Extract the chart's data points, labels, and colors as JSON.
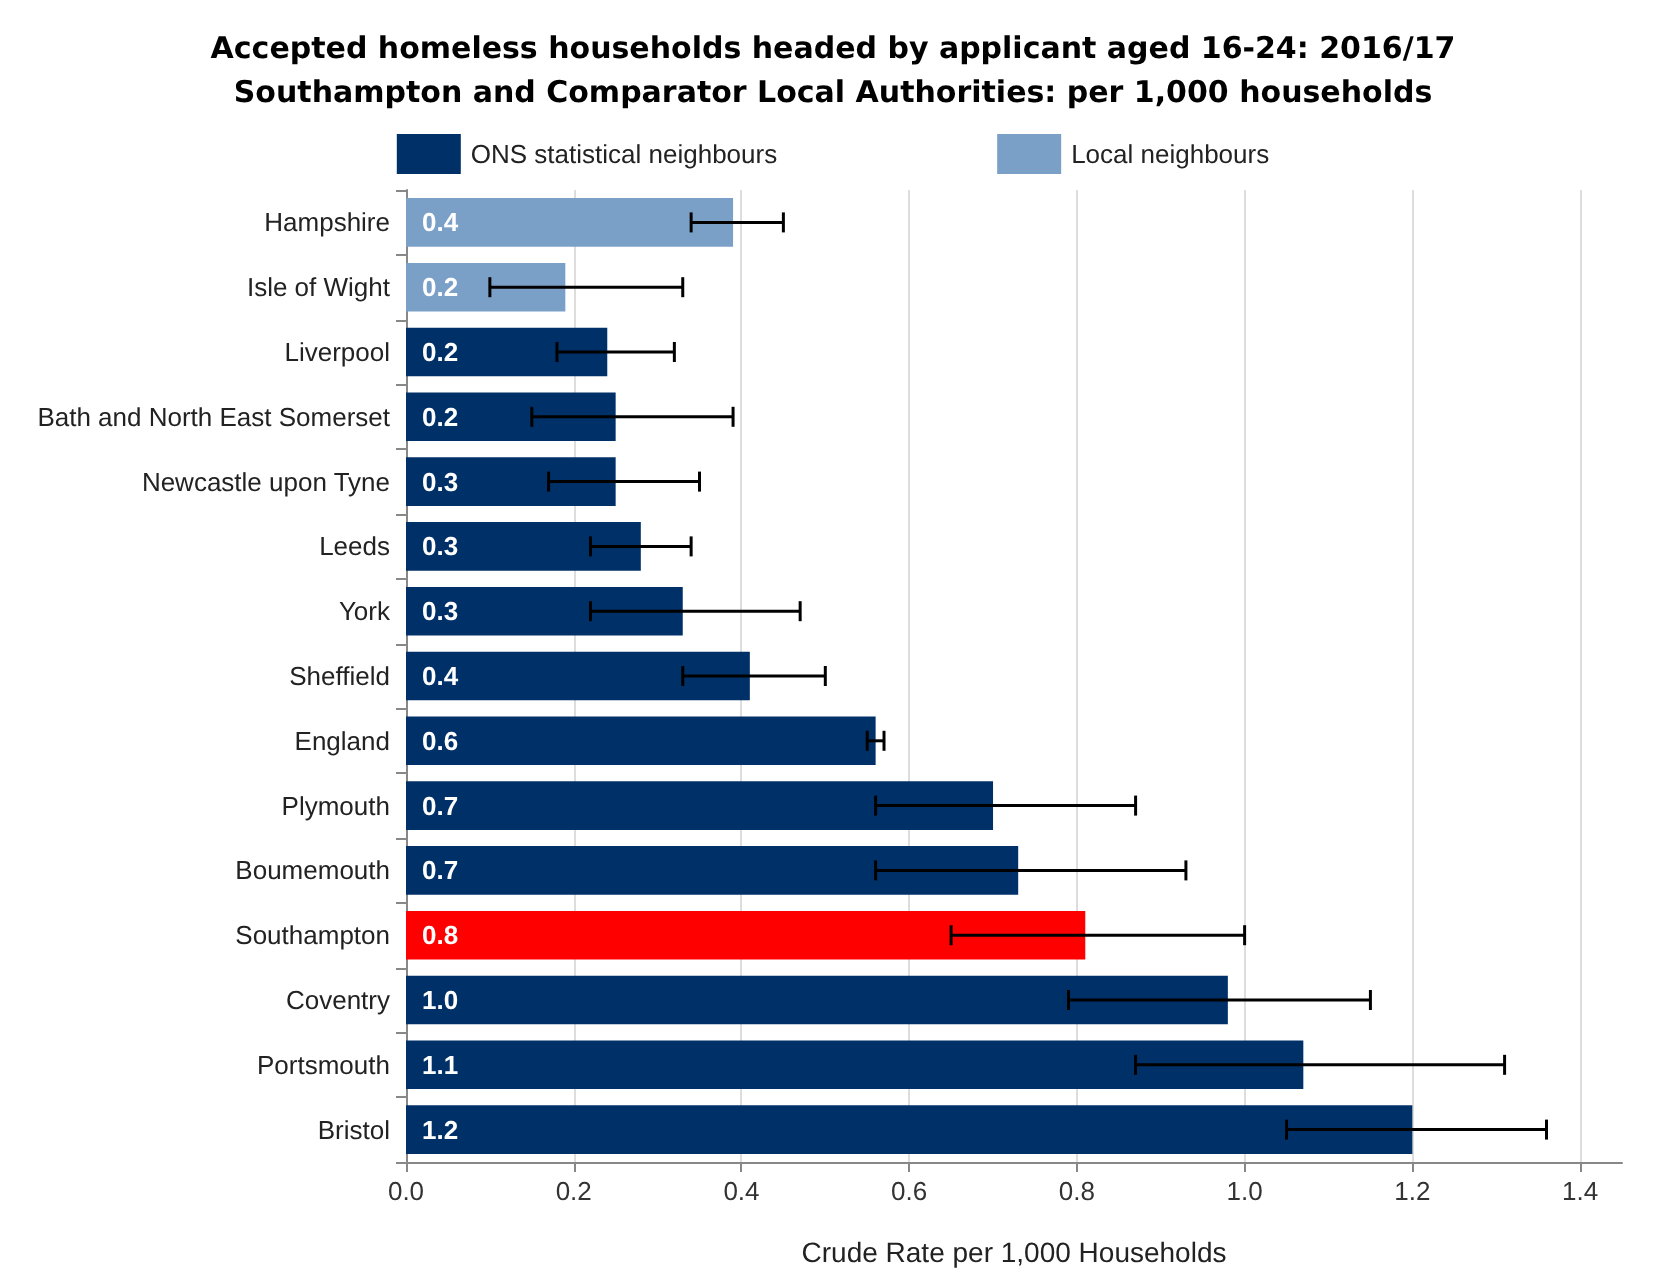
{
  "chart_data": {
    "type": "bar",
    "orientation": "horizontal",
    "title": "Accepted homeless households headed by applicant aged 16-24: 2016/17\nSouthampton and Comparator Local Authorities: per 1,000 households",
    "xlabel": "Crude Rate per 1,000 Households",
    "categories": [
      "Hampshire",
      "Isle of Wight",
      "Liverpool",
      "Bath and North East Somerset",
      "Newcastle upon Tyne",
      "Leeds",
      "York",
      "Sheffield",
      "England",
      "Plymouth",
      "Boumemouth",
      "Southampton",
      "Coventry",
      "Portsmouth",
      "Bristol"
    ],
    "series": [
      {
        "name": "ONS statistical neighbours",
        "color": "#003068",
        "colors": [
          null,
          null,
          "#003068",
          "#003068",
          "#003068",
          "#003068",
          "#003068",
          "#003068",
          "#003068",
          "#003068",
          "#003068",
          "#ff0000",
          "#003068",
          "#003068",
          "#003068"
        ],
        "values": [
          null,
          null,
          0.24,
          0.25,
          0.25,
          0.28,
          0.33,
          0.41,
          0.56,
          0.7,
          0.73,
          0.81,
          0.98,
          1.07,
          1.2
        ],
        "errors": [
          null,
          null,
          [
            0.18,
            0.32
          ],
          [
            0.15,
            0.39
          ],
          [
            0.17,
            0.35
          ],
          [
            0.22,
            0.34
          ],
          [
            0.22,
            0.47
          ],
          [
            0.33,
            0.5
          ],
          [
            0.55,
            0.57
          ],
          [
            0.56,
            0.87
          ],
          [
            0.56,
            0.93
          ],
          [
            0.65,
            1.0
          ],
          [
            0.79,
            1.15
          ],
          [
            0.87,
            1.31
          ],
          [
            1.05,
            1.36
          ]
        ],
        "value_labels": [
          null,
          null,
          "0.2",
          "0.2",
          "0.3",
          "0.3",
          "0.3",
          "0.4",
          "0.6",
          "0.7",
          "0.7",
          "0.8",
          "1.0",
          "1.1",
          "1.2"
        ]
      },
      {
        "name": "Local neighbours",
        "color": "#7ba0c8",
        "values": [
          0.39,
          0.19,
          null,
          null,
          null,
          null,
          null,
          null,
          null,
          null,
          null,
          null,
          null,
          null,
          null
        ],
        "errors": [
          [
            0.34,
            0.45
          ],
          [
            0.1,
            0.33
          ],
          null,
          null,
          null,
          null,
          null,
          null,
          null,
          null,
          null,
          null,
          null,
          null,
          null
        ],
        "value_labels": [
          "0.4",
          "0.2",
          null,
          null,
          null,
          null,
          null,
          null,
          null,
          null,
          null,
          null,
          null,
          null,
          null
        ]
      }
    ],
    "xlim": [
      0,
      1.45
    ],
    "xticks": [
      {
        "value": 0,
        "label": "0.0"
      },
      0.2,
      0.4,
      0.6,
      0.8,
      {
        "value": 1,
        "label": "1.0"
      },
      1.2,
      1.4
    ],
    "grid": "x",
    "legend": "top"
  }
}
